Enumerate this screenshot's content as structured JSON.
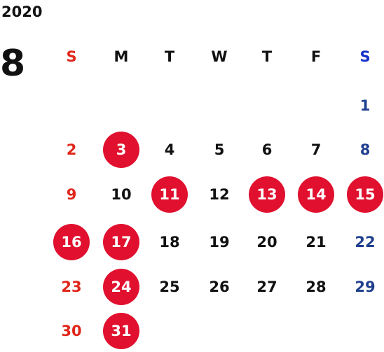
{
  "header": {
    "year": "2020",
    "month": "8"
  },
  "colors": {
    "sunday": "#e0261a",
    "saturday_header": "#1530c8",
    "saturday": "#1f3f8f",
    "weekday": "#111111",
    "highlight_bg": "#e0102e",
    "highlight_text": "#ffffff"
  },
  "weekdays": [
    "S",
    "M",
    "T",
    "W",
    "T",
    "F",
    "S"
  ],
  "days": [
    {
      "label": "1",
      "col": 6,
      "row": 0,
      "highlighted": false
    },
    {
      "label": "2",
      "col": 0,
      "row": 1,
      "highlighted": false
    },
    {
      "label": "3",
      "col": 1,
      "row": 1,
      "highlighted": true
    },
    {
      "label": "4",
      "col": 2,
      "row": 1,
      "highlighted": false
    },
    {
      "label": "5",
      "col": 3,
      "row": 1,
      "highlighted": false
    },
    {
      "label": "6",
      "col": 4,
      "row": 1,
      "highlighted": false
    },
    {
      "label": "7",
      "col": 5,
      "row": 1,
      "highlighted": false
    },
    {
      "label": "8",
      "col": 6,
      "row": 1,
      "highlighted": false
    },
    {
      "label": "9",
      "col": 0,
      "row": 2,
      "highlighted": false
    },
    {
      "label": "10",
      "col": 1,
      "row": 2,
      "highlighted": false
    },
    {
      "label": "11",
      "col": 2,
      "row": 2,
      "highlighted": true
    },
    {
      "label": "12",
      "col": 3,
      "row": 2,
      "highlighted": false
    },
    {
      "label": "13",
      "col": 4,
      "row": 2,
      "highlighted": true
    },
    {
      "label": "14",
      "col": 5,
      "row": 2,
      "highlighted": true
    },
    {
      "label": "15",
      "col": 6,
      "row": 2,
      "highlighted": true
    },
    {
      "label": "16",
      "col": 0,
      "row": 3,
      "highlighted": true
    },
    {
      "label": "17",
      "col": 1,
      "row": 3,
      "highlighted": true
    },
    {
      "label": "18",
      "col": 2,
      "row": 3,
      "highlighted": false
    },
    {
      "label": "19",
      "col": 3,
      "row": 3,
      "highlighted": false
    },
    {
      "label": "20",
      "col": 4,
      "row": 3,
      "highlighted": false
    },
    {
      "label": "21",
      "col": 5,
      "row": 3,
      "highlighted": false
    },
    {
      "label": "22",
      "col": 6,
      "row": 3,
      "highlighted": false
    },
    {
      "label": "23",
      "col": 0,
      "row": 4,
      "highlighted": false
    },
    {
      "label": "24",
      "col": 1,
      "row": 4,
      "highlighted": true
    },
    {
      "label": "25",
      "col": 2,
      "row": 4,
      "highlighted": false
    },
    {
      "label": "26",
      "col": 3,
      "row": 4,
      "highlighted": false
    },
    {
      "label": "27",
      "col": 4,
      "row": 4,
      "highlighted": false
    },
    {
      "label": "28",
      "col": 5,
      "row": 4,
      "highlighted": false
    },
    {
      "label": "29",
      "col": 6,
      "row": 4,
      "highlighted": false
    },
    {
      "label": "30",
      "col": 0,
      "row": 5,
      "highlighted": false
    },
    {
      "label": "31",
      "col": 1,
      "row": 5,
      "highlighted": true
    }
  ]
}
